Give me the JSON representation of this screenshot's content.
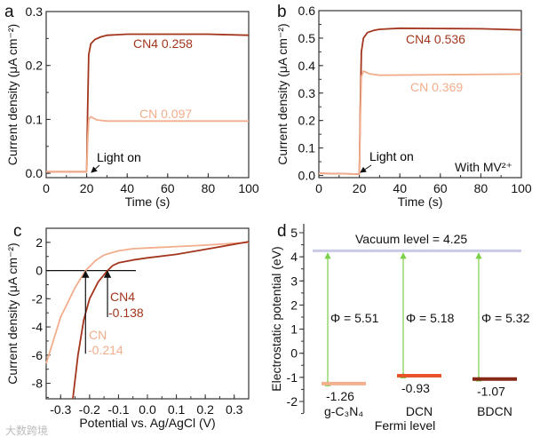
{
  "colors": {
    "cn4": "#a3351d",
    "cn": "#f2ae8c",
    "axis": "#333333",
    "green": "#7ccf4a",
    "vacuum": "#c9c9ea",
    "gcn": "#f3b08f",
    "dcn": "#e8542a",
    "bdcn": "#862818"
  },
  "watermark": "大数跨境",
  "chart_data": [
    {
      "panel": "a",
      "type": "line",
      "title": "",
      "xlabel": "Time (s)",
      "ylabel": "Current density (μA cm⁻²)",
      "xlim": [
        0,
        100
      ],
      "ylim": [
        -0.008,
        0.3
      ],
      "xticks": [
        0,
        20,
        40,
        60,
        80,
        100
      ],
      "xtick_labels": [
        "0",
        "20",
        "40",
        "60",
        "80",
        "100"
      ],
      "yticks": [
        0,
        0.1,
        0.2,
        0.3
      ],
      "ytick_labels": [
        "0.0",
        "0.1",
        "0.2",
        "0.3"
      ],
      "series": [
        {
          "name": "CN4",
          "label": "CN4  0.258",
          "color": "#a3351d",
          "x": [
            0,
            20,
            20.5,
            21,
            22,
            24,
            27,
            30,
            40,
            60,
            80,
            100
          ],
          "y": [
            0.003,
            0.003,
            0.12,
            0.22,
            0.24,
            0.248,
            0.253,
            0.256,
            0.258,
            0.258,
            0.258,
            0.256
          ]
        },
        {
          "name": "CN",
          "label": "CN  0.097",
          "color": "#f2ae8c",
          "x": [
            0,
            20,
            20.5,
            21,
            22,
            25,
            30,
            100
          ],
          "y": [
            0.003,
            0.003,
            0.06,
            0.1,
            0.105,
            0.099,
            0.097,
            0.097
          ]
        }
      ],
      "annotations": [
        "Light on"
      ]
    },
    {
      "panel": "b",
      "type": "line",
      "title": "",
      "xlabel": "Time (s)",
      "ylabel": "Current density (μA cm⁻²)",
      "xlim": [
        0,
        100
      ],
      "ylim": [
        -0.008,
        0.6
      ],
      "xticks": [
        0,
        20,
        40,
        60,
        80,
        100
      ],
      "xtick_labels": [
        "0",
        "20",
        "40",
        "60",
        "80",
        "100"
      ],
      "yticks": [
        0,
        0.1,
        0.2,
        0.3,
        0.4,
        0.5,
        0.6
      ],
      "ytick_labels": [
        "0.0",
        "0.1",
        "0.2",
        "0.3",
        "0.4",
        "0.5",
        "0.6"
      ],
      "series": [
        {
          "name": "CN4",
          "label": "CN4  0.536",
          "color": "#a3351d",
          "x": [
            0,
            20,
            20.5,
            21,
            22,
            24,
            27,
            30,
            40,
            60,
            80,
            100
          ],
          "y": [
            0.008,
            0.005,
            0.25,
            0.45,
            0.5,
            0.52,
            0.528,
            0.532,
            0.536,
            0.535,
            0.534,
            0.53
          ]
        },
        {
          "name": "CN",
          "label": "CN  0.369",
          "color": "#f2ae8c",
          "x": [
            0,
            20,
            20.5,
            21,
            22,
            25,
            30,
            100
          ],
          "y": [
            0.008,
            0.005,
            0.2,
            0.36,
            0.38,
            0.37,
            0.365,
            0.369
          ]
        }
      ],
      "annotations": [
        "Light on",
        "With MV²⁺"
      ]
    },
    {
      "panel": "c",
      "type": "line",
      "title": "",
      "xlabel": "Potential vs. Ag/AgCl (V)",
      "ylabel": "Current density (μA cm⁻²)",
      "xlim": [
        -0.35,
        0.35
      ],
      "ylim": [
        -9.1,
        3
      ],
      "xticks": [
        -0.3,
        -0.2,
        -0.1,
        0,
        0.1,
        0.2,
        0.3
      ],
      "xtick_labels": [
        "-0.3",
        "-0.2",
        "-0.1",
        "0.0",
        "0.1",
        "0.2",
        "0.3"
      ],
      "yticks": [
        -8,
        -6,
        -4,
        -2,
        0,
        2
      ],
      "ytick_labels": [
        "-8",
        "-6",
        "-4",
        "-2",
        "0",
        "2"
      ],
      "series": [
        {
          "name": "CN",
          "label": "CN",
          "value_label": "-0.214",
          "onset": -0.214,
          "color": "#f2ae8c",
          "x": [
            -0.35,
            -0.3,
            -0.25,
            -0.214,
            -0.18,
            -0.15,
            -0.1,
            -0.05,
            0,
            0.1,
            0.2,
            0.35
          ],
          "y": [
            -6.6,
            -3.3,
            -1.2,
            0,
            0.7,
            1.1,
            1.4,
            1.55,
            1.6,
            1.7,
            1.8,
            2.0
          ]
        },
        {
          "name": "CN4",
          "label": "CN4",
          "value_label": "-0.138",
          "onset": -0.138,
          "color": "#a3351d",
          "x": [
            -0.258,
            -0.24,
            -0.22,
            -0.2,
            -0.17,
            -0.138,
            -0.12,
            -0.1,
            -0.05,
            0,
            0.1,
            0.2,
            0.35
          ],
          "y": [
            -9.1,
            -6,
            -3.5,
            -2,
            -0.8,
            0,
            0.35,
            0.55,
            0.75,
            0.9,
            1.15,
            1.5,
            2.05
          ]
        }
      ]
    },
    {
      "panel": "d",
      "type": "bar",
      "title": "",
      "xlabel": "Fermi level",
      "ylabel": "Electrostatic potential (eV)",
      "ylim": [
        -2.5,
        5.4
      ],
      "yticks": [
        -2,
        -1,
        0,
        1,
        2,
        3,
        4,
        5
      ],
      "ytick_labels": [
        "-2",
        "-1",
        "0",
        "1",
        "2",
        "3",
        "4",
        "5"
      ],
      "vacuum_level": 4.25,
      "vacuum_label": "Vacuum level = 4.25",
      "categories": [
        "g-C₃N₄",
        "DCN",
        "BDCN"
      ],
      "fermi_levels": [
        -1.26,
        -0.93,
        -1.07
      ],
      "fermi_labels": [
        "-1.26",
        "-0.93",
        "-1.07"
      ],
      "work_functions": [
        "Φ = 5.51",
        "Φ = 5.18",
        "Φ = 5.32"
      ],
      "colors": [
        "#f3b08f",
        "#e8542a",
        "#862818"
      ]
    }
  ]
}
